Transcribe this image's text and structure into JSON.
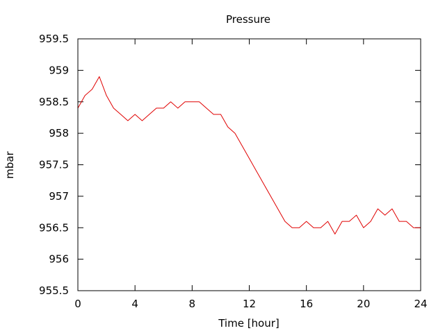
{
  "chart_data": {
    "type": "line",
    "title": "Pressure",
    "xlabel": "Time [hour]",
    "ylabel": "mbar",
    "xlim": [
      0,
      24
    ],
    "ylim": [
      955.5,
      959.5
    ],
    "x_ticks": [
      0,
      4,
      8,
      12,
      16,
      20,
      24
    ],
    "x_tick_labels": [
      "0",
      "4",
      "8",
      "12",
      "16",
      "20",
      "24"
    ],
    "y_ticks": [
      955.5,
      956,
      956.5,
      957,
      957.5,
      958,
      958.5,
      959,
      959.5
    ],
    "y_tick_labels": [
      "955.5",
      "956",
      "956.5",
      "957",
      "957.5",
      "958",
      "958.5",
      "959",
      "959.5"
    ],
    "grid": false,
    "legend": "none",
    "line_color": "#e00000",
    "series": [
      {
        "x": [
          0,
          0.5,
          1,
          1.5,
          2,
          2.5,
          3,
          3.5,
          4,
          4.5,
          5,
          5.5,
          6,
          6.5,
          7,
          7.5,
          8,
          8.5,
          9,
          9.5,
          10,
          10.5,
          11,
          11.5,
          12,
          12.5,
          13,
          13.5,
          14,
          14.5,
          15,
          15.5,
          16,
          16.5,
          17,
          17.5,
          18,
          18.5,
          19,
          19.5,
          20,
          20.5,
          21,
          21.5,
          22,
          22.5,
          23,
          23.5,
          24
        ],
        "values": [
          958.4,
          958.6,
          958.7,
          958.9,
          958.6,
          958.4,
          958.3,
          958.2,
          958.3,
          958.2,
          958.3,
          958.4,
          958.4,
          958.5,
          958.4,
          958.5,
          958.5,
          958.5,
          958.4,
          958.3,
          958.3,
          958.1,
          958.0,
          957.8,
          957.6,
          957.4,
          957.2,
          957.0,
          956.8,
          956.6,
          956.5,
          956.5,
          956.6,
          956.5,
          956.5,
          956.6,
          956.4,
          956.6,
          956.6,
          956.7,
          956.5,
          956.6,
          956.8,
          956.7,
          956.8,
          956.6,
          956.6,
          956.5,
          956.5
        ]
      }
    ]
  }
}
